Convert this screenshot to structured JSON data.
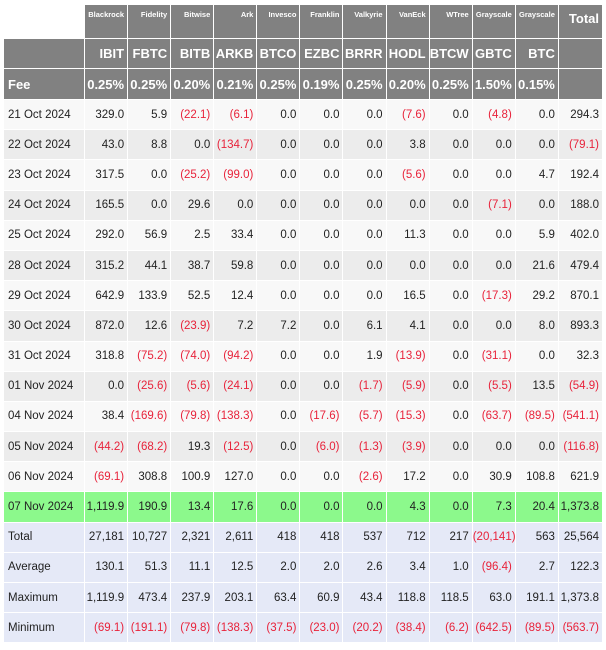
{
  "table": {
    "issuers": [
      "Blackrock",
      "Fidelity",
      "Bitwise",
      "Ark",
      "Invesco",
      "Franklin",
      "Valkyrie",
      "VanEck",
      "WTree",
      "Grayscale",
      "Grayscale"
    ],
    "total_label": "Total",
    "tickers": [
      "IBIT",
      "FBTC",
      "BITB",
      "ARKB",
      "BTCO",
      "EZBC",
      "BRRR",
      "HODL",
      "BTCW",
      "GBTC",
      "BTC"
    ],
    "fee_label": "Fee",
    "fees": [
      "0.25%",
      "0.25%",
      "0.20%",
      "0.21%",
      "0.25%",
      "0.19%",
      "0.25%",
      "0.20%",
      "0.25%",
      "1.50%",
      "0.15%"
    ],
    "rows": [
      {
        "date": "21 Oct 2024",
        "values": [
          "329.0",
          "5.9",
          "(22.1)",
          "(6.1)",
          "0.0",
          "0.0",
          "0.0",
          "(7.6)",
          "0.0",
          "(4.8)",
          "0.0"
        ],
        "total": "294.3",
        "highlight": false
      },
      {
        "date": "22 Oct 2024",
        "values": [
          "43.0",
          "8.8",
          "0.0",
          "(134.7)",
          "0.0",
          "0.0",
          "0.0",
          "3.8",
          "0.0",
          "0.0",
          "0.0"
        ],
        "total": "(79.1)",
        "highlight": false
      },
      {
        "date": "23 Oct 2024",
        "values": [
          "317.5",
          "0.0",
          "(25.2)",
          "(99.0)",
          "0.0",
          "0.0",
          "0.0",
          "(5.6)",
          "0.0",
          "0.0",
          "4.7"
        ],
        "total": "192.4",
        "highlight": false
      },
      {
        "date": "24 Oct 2024",
        "values": [
          "165.5",
          "0.0",
          "29.6",
          "0.0",
          "0.0",
          "0.0",
          "0.0",
          "0.0",
          "0.0",
          "(7.1)",
          "0.0"
        ],
        "total": "188.0",
        "highlight": false
      },
      {
        "date": "25 Oct 2024",
        "values": [
          "292.0",
          "56.9",
          "2.5",
          "33.4",
          "0.0",
          "0.0",
          "0.0",
          "11.3",
          "0.0",
          "0.0",
          "5.9"
        ],
        "total": "402.0",
        "highlight": false
      },
      {
        "date": "28 Oct 2024",
        "values": [
          "315.2",
          "44.1",
          "38.7",
          "59.8",
          "0.0",
          "0.0",
          "0.0",
          "0.0",
          "0.0",
          "0.0",
          "21.6"
        ],
        "total": "479.4",
        "highlight": false
      },
      {
        "date": "29 Oct 2024",
        "values": [
          "642.9",
          "133.9",
          "52.5",
          "12.4",
          "0.0",
          "0.0",
          "0.0",
          "16.5",
          "0.0",
          "(17.3)",
          "29.2"
        ],
        "total": "870.1",
        "highlight": false
      },
      {
        "date": "30 Oct 2024",
        "values": [
          "872.0",
          "12.6",
          "(23.9)",
          "7.2",
          "7.2",
          "0.0",
          "6.1",
          "4.1",
          "0.0",
          "0.0",
          "8.0"
        ],
        "total": "893.3",
        "highlight": false
      },
      {
        "date": "31 Oct 2024",
        "values": [
          "318.8",
          "(75.2)",
          "(74.0)",
          "(94.2)",
          "0.0",
          "0.0",
          "1.9",
          "(13.9)",
          "0.0",
          "(31.1)",
          "0.0"
        ],
        "total": "32.3",
        "highlight": false
      },
      {
        "date": "01 Nov 2024",
        "values": [
          "0.0",
          "(25.6)",
          "(5.6)",
          "(24.1)",
          "0.0",
          "0.0",
          "(1.7)",
          "(5.9)",
          "0.0",
          "(5.5)",
          "13.5"
        ],
        "total": "(54.9)",
        "highlight": false
      },
      {
        "date": "04 Nov 2024",
        "values": [
          "38.4",
          "(169.6)",
          "(79.8)",
          "(138.3)",
          "0.0",
          "(17.6)",
          "(5.7)",
          "(15.3)",
          "0.0",
          "(63.7)",
          "(89.5)"
        ],
        "total": "(541.1)",
        "highlight": false
      },
      {
        "date": "05 Nov 2024",
        "values": [
          "(44.2)",
          "(68.2)",
          "19.3",
          "(12.5)",
          "0.0",
          "(6.0)",
          "(1.3)",
          "(3.9)",
          "0.0",
          "0.0",
          "0.0"
        ],
        "total": "(116.8)",
        "highlight": false
      },
      {
        "date": "06 Nov 2024",
        "values": [
          "(69.1)",
          "308.8",
          "100.9",
          "127.0",
          "0.0",
          "0.0",
          "(2.6)",
          "17.2",
          "0.0",
          "30.9",
          "108.8"
        ],
        "total": "621.9",
        "highlight": false
      },
      {
        "date": "07 Nov 2024",
        "values": [
          "1,119.9",
          "190.9",
          "13.4",
          "17.6",
          "0.0",
          "0.0",
          "0.0",
          "4.3",
          "0.0",
          "7.3",
          "20.4"
        ],
        "total": "1,373.8",
        "highlight": true
      }
    ],
    "stats": [
      {
        "label": "Total",
        "values": [
          "27,181",
          "10,727",
          "2,321",
          "2,611",
          "418",
          "418",
          "537",
          "712",
          "217",
          "(20,141)",
          "563"
        ],
        "total": "25,564"
      },
      {
        "label": "Average",
        "values": [
          "130.1",
          "51.3",
          "11.1",
          "12.5",
          "2.0",
          "2.0",
          "2.6",
          "3.4",
          "1.0",
          "(96.4)",
          "2.7"
        ],
        "total": "122.3"
      },
      {
        "label": "Maximum",
        "values": [
          "1,119.9",
          "473.4",
          "237.9",
          "203.1",
          "63.4",
          "60.9",
          "43.4",
          "118.8",
          "118.5",
          "63.0",
          "191.1"
        ],
        "total": "1,373.8"
      },
      {
        "label": "Minimum",
        "values": [
          "(69.1)",
          "(191.1)",
          "(79.8)",
          "(138.3)",
          "(37.5)",
          "(23.0)",
          "(20.2)",
          "(38.4)",
          "(6.2)",
          "(642.5)",
          "(89.5)"
        ],
        "total": "(563.7)"
      }
    ],
    "colors": {
      "header_bg": "#818181",
      "negative": "#e8223a",
      "highlight_row": "#8cf98c",
      "stats_bg": "#e5e9f7"
    }
  }
}
